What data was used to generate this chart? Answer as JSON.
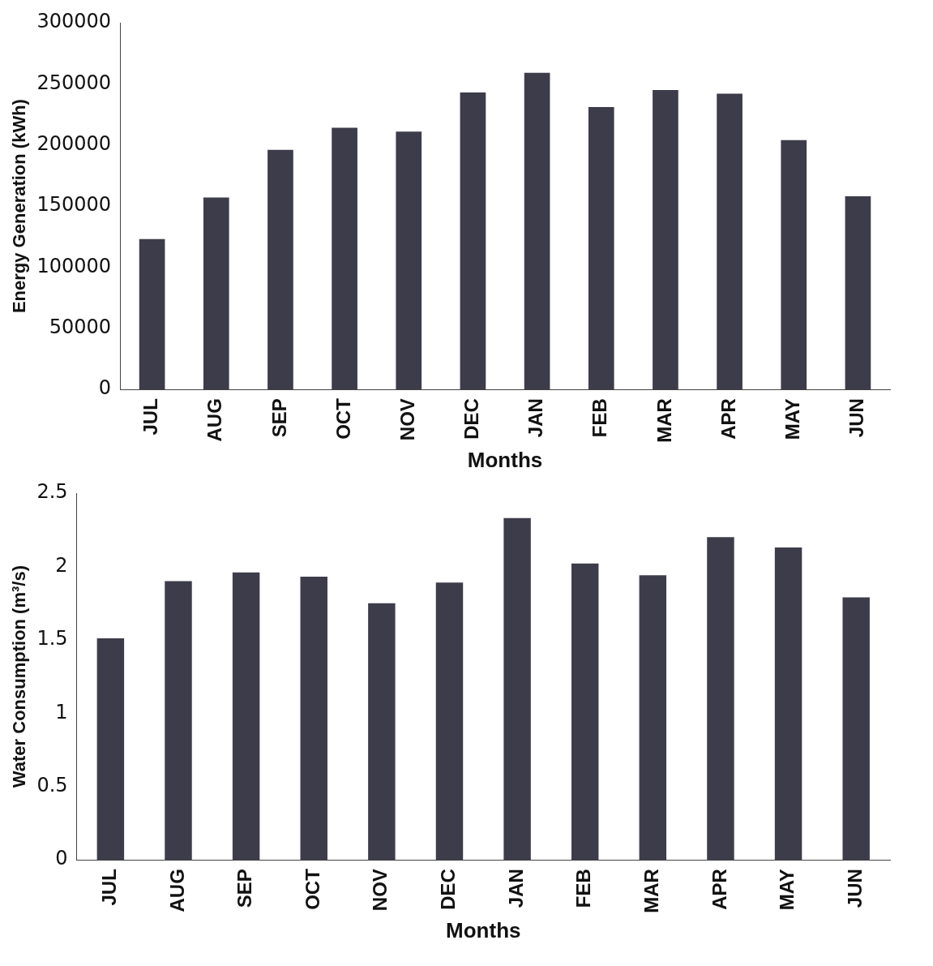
{
  "chart_data": [
    {
      "type": "bar",
      "xlabel": "Months",
      "ylabel": "Energy Generation (kWh)",
      "categories": [
        "JUL",
        "AUG",
        "SEP",
        "OCT",
        "NOV",
        "DEC",
        "JAN",
        "FEB",
        "MAR",
        "APR",
        "MAY",
        "JUN"
      ],
      "values": [
        123000,
        157000,
        196000,
        214000,
        211000,
        243000,
        259000,
        231000,
        245000,
        242000,
        204000,
        158000
      ],
      "color": "#3c3c4a",
      "ylim": [
        0,
        300000
      ],
      "yticks": [
        0,
        50000,
        100000,
        150000,
        200000,
        250000,
        300000
      ],
      "grid": false,
      "legend": false
    },
    {
      "type": "bar",
      "xlabel": "Months",
      "ylabel": "Water Consumption (m³/s)",
      "categories": [
        "JUL",
        "AUG",
        "SEP",
        "OCT",
        "NOV",
        "DEC",
        "JAN",
        "FEB",
        "MAR",
        "APR",
        "MAY",
        "JUN"
      ],
      "values": [
        1.51,
        1.9,
        1.96,
        1.93,
        1.75,
        1.89,
        2.33,
        2.02,
        1.94,
        2.2,
        2.13,
        1.79
      ],
      "color": "#3c3c4a",
      "ylim": [
        0,
        2.5
      ],
      "yticks": [
        0,
        0.5,
        1,
        1.5,
        2,
        2.5
      ],
      "grid": false,
      "legend": false
    }
  ]
}
